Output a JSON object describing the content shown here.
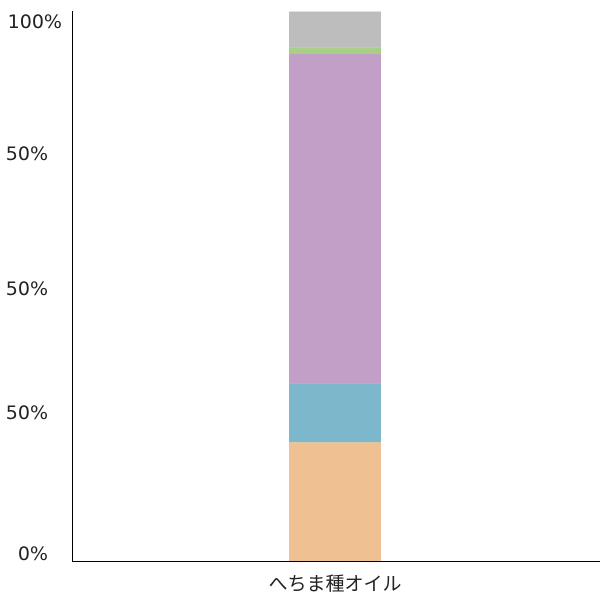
{
  "chart_data": {
    "type": "bar",
    "stacked": true,
    "categories": [
      "へちま種オイル"
    ],
    "series": [
      {
        "values": [
          21.6
        ],
        "color": "#eec092"
      },
      {
        "values": [
          10.7
        ],
        "color": "#7db7cb"
      },
      {
        "values": [
          60.0
        ],
        "color": "#c29fc7"
      },
      {
        "values": [
          1.1
        ],
        "color": "#a8cf86"
      },
      {
        "values": [
          6.5
        ],
        "color": "#bdbdbd"
      }
    ],
    "ytick_labels": [
      "100%",
      "50%",
      "50%",
      "50%",
      "0%"
    ],
    "ylim": [
      0,
      100
    ],
    "grid": false,
    "legend": "none"
  }
}
